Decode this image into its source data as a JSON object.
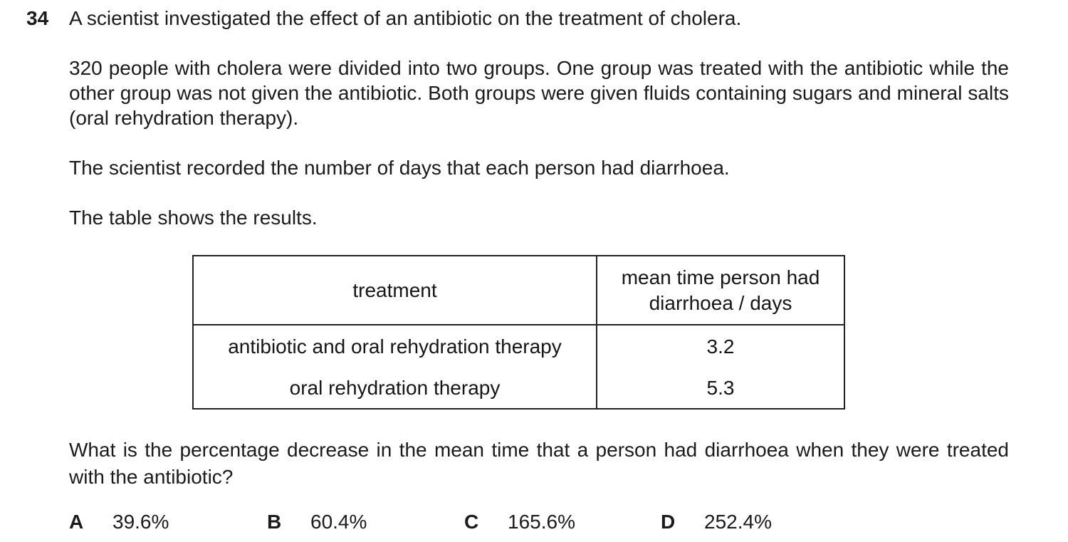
{
  "question": {
    "number": "34",
    "intro": "A scientist investigated the effect of an antibiotic on the treatment of cholera.",
    "paragraph_groups": "320 people with cholera were divided into two groups. One group was treated with the antibiotic while the other group was not given the antibiotic. Both groups were given fluids containing sugars and mineral salts (oral rehydration therapy).",
    "paragraph_recorded": "The scientist recorded the number of days that each person had diarrhoea.",
    "paragraph_table_intro": "The table shows the results.",
    "prompt": "What is the percentage decrease in the mean time that a person had diarrhoea when they were treated with the antibiotic?"
  },
  "table": {
    "col1_header": "treatment",
    "col2_header_line1": "mean time person had",
    "col2_header_line2": "diarrhoea / days",
    "rows": [
      {
        "treatment": "antibiotic and oral rehydration therapy",
        "value": "3.2"
      },
      {
        "treatment": "oral rehydration therapy",
        "value": "5.3"
      }
    ]
  },
  "options": [
    {
      "letter": "A",
      "value": "39.6%"
    },
    {
      "letter": "B",
      "value": "60.4%"
    },
    {
      "letter": "C",
      "value": "165.6%"
    },
    {
      "letter": "D",
      "value": "252.4%"
    }
  ],
  "colors": {
    "text": "#1b1b1b",
    "table_border": "#222222",
    "background": "#ffffff"
  }
}
